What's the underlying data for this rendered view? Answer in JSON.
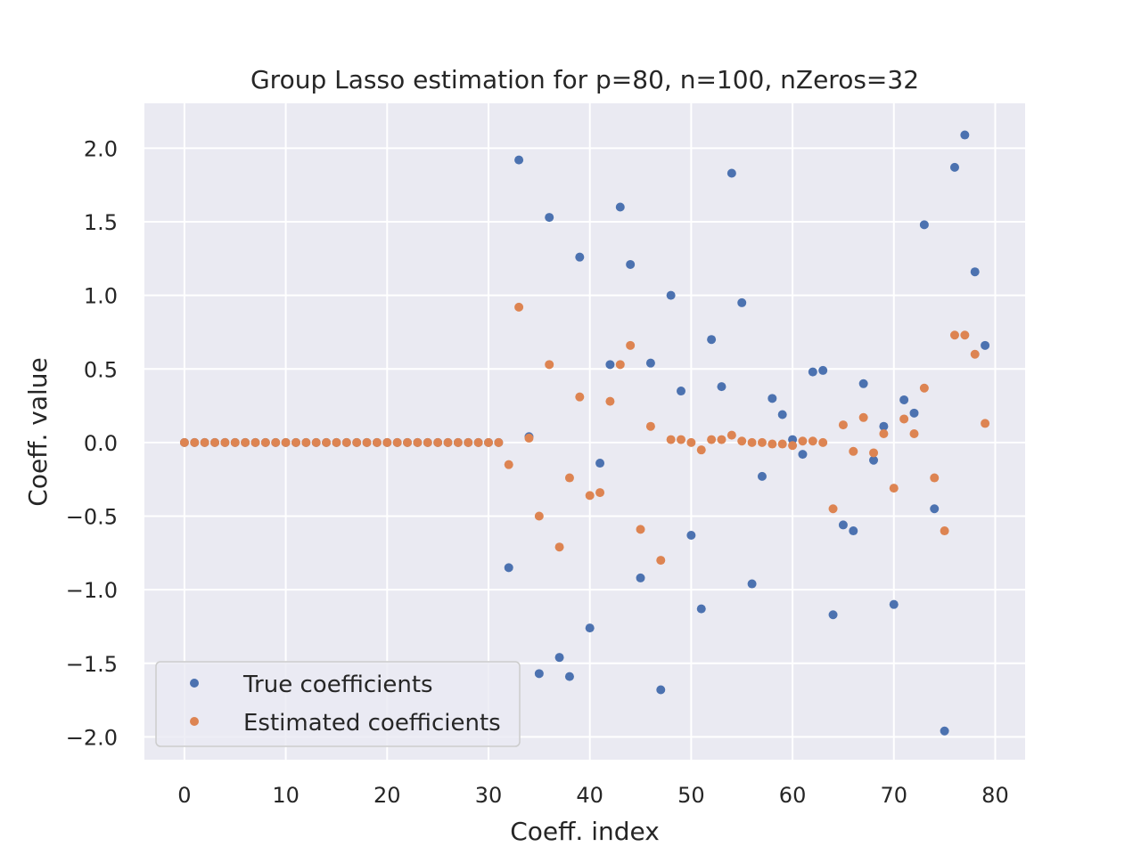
{
  "chart_data": {
    "type": "scatter",
    "title": "Group Lasso estimation for p=80, n=100, nZeros=32",
    "xlabel": "Coeff. index",
    "ylabel": "Coeff. value",
    "xlim": [
      -3.95,
      82.95
    ],
    "ylim": [
      -2.155,
      2.305
    ],
    "xticks": [
      0,
      10,
      20,
      30,
      40,
      50,
      60,
      70,
      80
    ],
    "xtick_labels": [
      "0",
      "10",
      "20",
      "30",
      "40",
      "50",
      "60",
      "70",
      "80"
    ],
    "yticks": [
      -2.0,
      -1.5,
      -1.0,
      -0.5,
      0.0,
      0.5,
      1.0,
      1.5,
      2.0
    ],
    "ytick_labels": [
      "−2.0",
      "−1.5",
      "−1.0",
      "−0.5",
      "0.0",
      "0.5",
      "1.0",
      "1.5",
      "2.0"
    ],
    "grid": true,
    "legend_position": "bottom-left",
    "colors": {
      "background": "#eaeaf2",
      "grid": "#ffffff",
      "true": "#4c72b0",
      "estimated": "#dd8452"
    },
    "series": [
      {
        "name": "True coefficients",
        "color": "#4c72b0",
        "x": [
          0,
          1,
          2,
          3,
          4,
          5,
          6,
          7,
          8,
          9,
          10,
          11,
          12,
          13,
          14,
          15,
          16,
          17,
          18,
          19,
          20,
          21,
          22,
          23,
          24,
          25,
          26,
          27,
          28,
          29,
          30,
          31,
          32,
          33,
          34,
          35,
          36,
          37,
          38,
          39,
          40,
          41,
          42,
          43,
          44,
          45,
          46,
          47,
          48,
          49,
          50,
          51,
          52,
          53,
          54,
          55,
          56,
          57,
          58,
          59,
          60,
          61,
          62,
          63,
          64,
          65,
          66,
          67,
          68,
          69,
          70,
          71,
          72,
          73,
          74,
          75,
          76,
          77,
          78,
          79
        ],
        "y": [
          0,
          0,
          0,
          0,
          0,
          0,
          0,
          0,
          0,
          0,
          0,
          0,
          0,
          0,
          0,
          0,
          0,
          0,
          0,
          0,
          0,
          0,
          0,
          0,
          0,
          0,
          0,
          0,
          0,
          0,
          0,
          0,
          -0.85,
          1.92,
          0.04,
          -1.57,
          1.53,
          -1.46,
          -1.59,
          1.26,
          -1.26,
          -0.14,
          0.53,
          1.6,
          1.21,
          -0.92,
          0.54,
          -1.68,
          1.0,
          0.35,
          -0.63,
          -1.13,
          0.7,
          0.38,
          1.83,
          0.95,
          -0.96,
          -0.23,
          0.3,
          0.19,
          0.02,
          -0.08,
          0.48,
          0.49,
          -1.17,
          -0.56,
          -0.6,
          0.4,
          -0.12,
          0.11,
          -1.1,
          0.29,
          0.2,
          1.48,
          -0.45,
          -1.96,
          1.87,
          2.09,
          1.16,
          0.66
        ]
      },
      {
        "name": "Estimated coefficients",
        "color": "#dd8452",
        "x": [
          0,
          1,
          2,
          3,
          4,
          5,
          6,
          7,
          8,
          9,
          10,
          11,
          12,
          13,
          14,
          15,
          16,
          17,
          18,
          19,
          20,
          21,
          22,
          23,
          24,
          25,
          26,
          27,
          28,
          29,
          30,
          31,
          32,
          33,
          34,
          35,
          36,
          37,
          38,
          39,
          40,
          41,
          42,
          43,
          44,
          45,
          46,
          47,
          48,
          49,
          50,
          51,
          52,
          53,
          54,
          55,
          56,
          57,
          58,
          59,
          60,
          61,
          62,
          63,
          64,
          65,
          66,
          67,
          68,
          69,
          70,
          71,
          72,
          73,
          74,
          75,
          76,
          77,
          78,
          79
        ],
        "y": [
          0,
          0,
          0,
          0,
          0,
          0,
          0,
          0,
          0,
          0,
          0,
          0,
          0,
          0,
          0,
          0,
          0,
          0,
          0,
          0,
          0,
          0,
          0,
          0,
          0,
          0,
          0,
          0,
          0,
          0,
          0,
          0,
          -0.15,
          0.92,
          0.03,
          -0.5,
          0.53,
          -0.71,
          -0.24,
          0.31,
          -0.36,
          -0.34,
          0.28,
          0.53,
          0.66,
          -0.59,
          0.11,
          -0.8,
          0.02,
          0.02,
          0.0,
          -0.05,
          0.02,
          0.02,
          0.05,
          0.01,
          0.0,
          0.0,
          -0.01,
          -0.01,
          -0.02,
          0.01,
          0.01,
          0.0,
          -0.45,
          0.12,
          -0.06,
          0.17,
          -0.07,
          0.06,
          -0.31,
          0.16,
          0.06,
          0.37,
          -0.24,
          -0.6,
          0.73,
          0.73,
          0.6,
          0.13
        ]
      }
    ]
  }
}
